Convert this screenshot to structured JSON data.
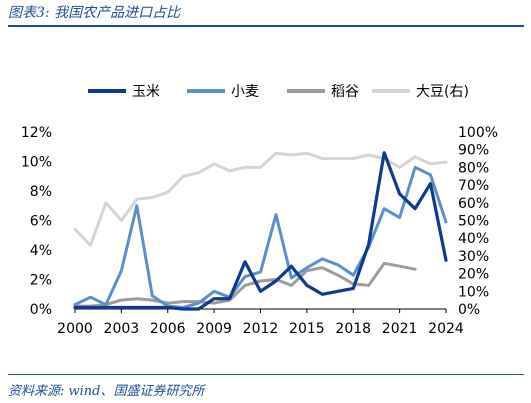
{
  "title": "图表3:  我国农产品进口占比",
  "source": "资料来源: wind、国盛证券研究所",
  "chart_data": {
    "type": "line",
    "x": [
      2000,
      2001,
      2002,
      2003,
      2004,
      2005,
      2006,
      2007,
      2008,
      2009,
      2010,
      2011,
      2012,
      2013,
      2014,
      2015,
      2016,
      2017,
      2018,
      2019,
      2020,
      2021,
      2022,
      2023,
      2024
    ],
    "x_ticks": [
      "2000",
      "2003",
      "2006",
      "2009",
      "2012",
      "2015",
      "2018",
      "2021",
      "2024"
    ],
    "y_left": {
      "ylim": [
        0,
        12
      ],
      "ticks": [
        "0%",
        "2%",
        "4%",
        "6%",
        "8%",
        "10%",
        "12%"
      ]
    },
    "y_right": {
      "ylim": [
        0,
        100
      ],
      "ticks": [
        "0%",
        "10%",
        "20%",
        "30%",
        "40%",
        "50%",
        "60%",
        "70%",
        "80%",
        "90%",
        "100%"
      ]
    },
    "legend_position": "top",
    "series": [
      {
        "name": "玉米",
        "axis": "left",
        "color": "#0d3a8f",
        "width": 3.2,
        "values": [
          0.1,
          0.1,
          0.1,
          0.1,
          0.1,
          0.1,
          0.1,
          0.0,
          0.0,
          0.7,
          0.7,
          3.2,
          1.2,
          1.9,
          2.9,
          1.6,
          1.0,
          1.2,
          1.4,
          4.4,
          10.6,
          7.8,
          6.8,
          8.5,
          3.3
        ]
      },
      {
        "name": "小麦",
        "axis": "left",
        "color": "#5b8fcc",
        "width": 3.0,
        "values": [
          0.3,
          0.8,
          0.3,
          2.6,
          7.0,
          0.9,
          0.2,
          0.1,
          0.4,
          1.2,
          0.8,
          2.2,
          2.5,
          6.4,
          2.1,
          2.8,
          3.4,
          3.0,
          2.3,
          4.2,
          6.8,
          6.2,
          9.6,
          9.1,
          5.9
        ]
      },
      {
        "name": "稻谷",
        "axis": "left",
        "color": "#9b9b9b",
        "width": 3.0,
        "values": [
          0.2,
          0.2,
          0.3,
          0.6,
          0.7,
          0.6,
          0.4,
          0.5,
          0.5,
          0.4,
          0.6,
          1.6,
          1.9,
          2.0,
          1.6,
          2.6,
          2.8,
          2.3,
          1.7,
          1.6,
          3.1,
          2.9,
          2.7,
          null,
          null
        ]
      },
      {
        "name": "大豆(右)",
        "axis": "right",
        "color": "#d4d4d4",
        "width": 3.0,
        "values": [
          45,
          36,
          60,
          50,
          62,
          63,
          66,
          75,
          77,
          82,
          78,
          80,
          80,
          88,
          87,
          88,
          85,
          85,
          85,
          87,
          85,
          80,
          86,
          82,
          83
        ]
      }
    ]
  }
}
